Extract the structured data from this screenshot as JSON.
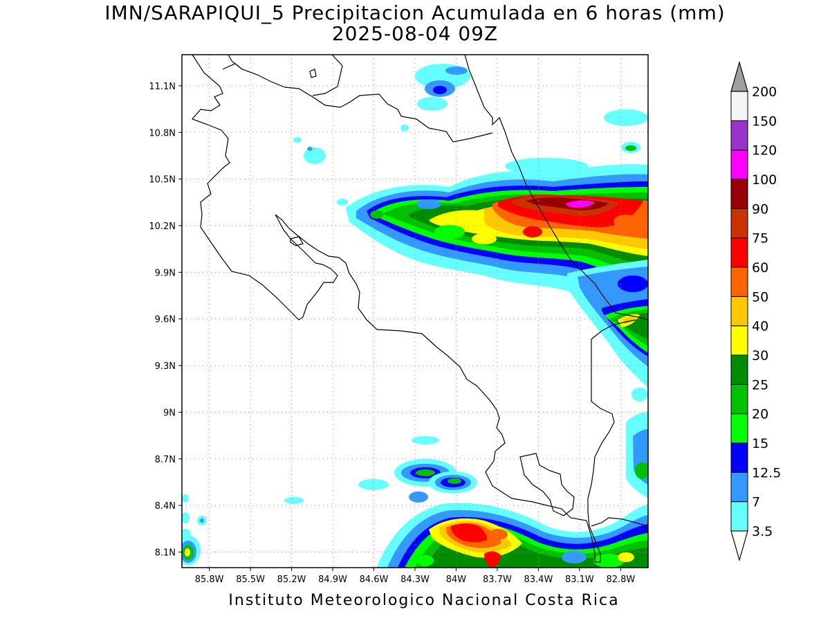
{
  "title": {
    "line1": "IMN/SARAPIQUI_5 Precipitacion Acumulada en 6 horas (mm)",
    "line2": "2025-08-04 09Z"
  },
  "footer": "Instituto Meteorologico Nacional Costa Rica",
  "map": {
    "lat_range": [
      8.0,
      11.3
    ],
    "lon_range": [
      -86.0,
      -82.6
    ],
    "lat_ticks": [
      {
        "value": 11.1,
        "label": "11.1N"
      },
      {
        "value": 10.8,
        "label": "10.8N"
      },
      {
        "value": 10.5,
        "label": "10.5N"
      },
      {
        "value": 10.2,
        "label": "10.2N"
      },
      {
        "value": 9.9,
        "label": "9.9N"
      },
      {
        "value": 9.6,
        "label": "9.6N"
      },
      {
        "value": 9.3,
        "label": "9.3N"
      },
      {
        "value": 9.0,
        "label": "9N"
      },
      {
        "value": 8.7,
        "label": "8.7N"
      },
      {
        "value": 8.4,
        "label": "8.4N"
      },
      {
        "value": 8.1,
        "label": "8.1N"
      }
    ],
    "lon_ticks": [
      {
        "value": -85.8,
        "label": "85.8W"
      },
      {
        "value": -85.5,
        "label": "85.5W"
      },
      {
        "value": -85.2,
        "label": "85.2W"
      },
      {
        "value": -84.9,
        "label": "84.9W"
      },
      {
        "value": -84.6,
        "label": "84.6W"
      },
      {
        "value": -84.3,
        "label": "84.3W"
      },
      {
        "value": -84.0,
        "label": "84W"
      },
      {
        "value": -83.7,
        "label": "83.7W"
      },
      {
        "value": -83.4,
        "label": "83.4W"
      },
      {
        "value": -83.1,
        "label": "83.1W"
      },
      {
        "value": -82.8,
        "label": "82.8W"
      }
    ],
    "grid": true
  },
  "colorbar": {
    "levels": [
      {
        "label": "3.5",
        "color": "#66ffff"
      },
      {
        "label": "7",
        "color": "#3399ff"
      },
      {
        "label": "12.5",
        "color": "#0000ff"
      },
      {
        "label": "15",
        "color": "#00ff00"
      },
      {
        "label": "20",
        "color": "#00c000"
      },
      {
        "label": "25",
        "color": "#008c00"
      },
      {
        "label": "30",
        "color": "#ffff00"
      },
      {
        "label": "40",
        "color": "#ffc800"
      },
      {
        "label": "50",
        "color": "#ff6400"
      },
      {
        "label": "60",
        "color": "#ff0000"
      },
      {
        "label": "75",
        "color": "#c83200"
      },
      {
        "label": "90",
        "color": "#960000"
      },
      {
        "label": "100",
        "color": "#ff00ff"
      },
      {
        "label": "120",
        "color": "#9933cc"
      },
      {
        "label": "150",
        "color": "#f5f5f5"
      },
      {
        "label": "200",
        "color": "#a0a0a0"
      }
    ]
  }
}
